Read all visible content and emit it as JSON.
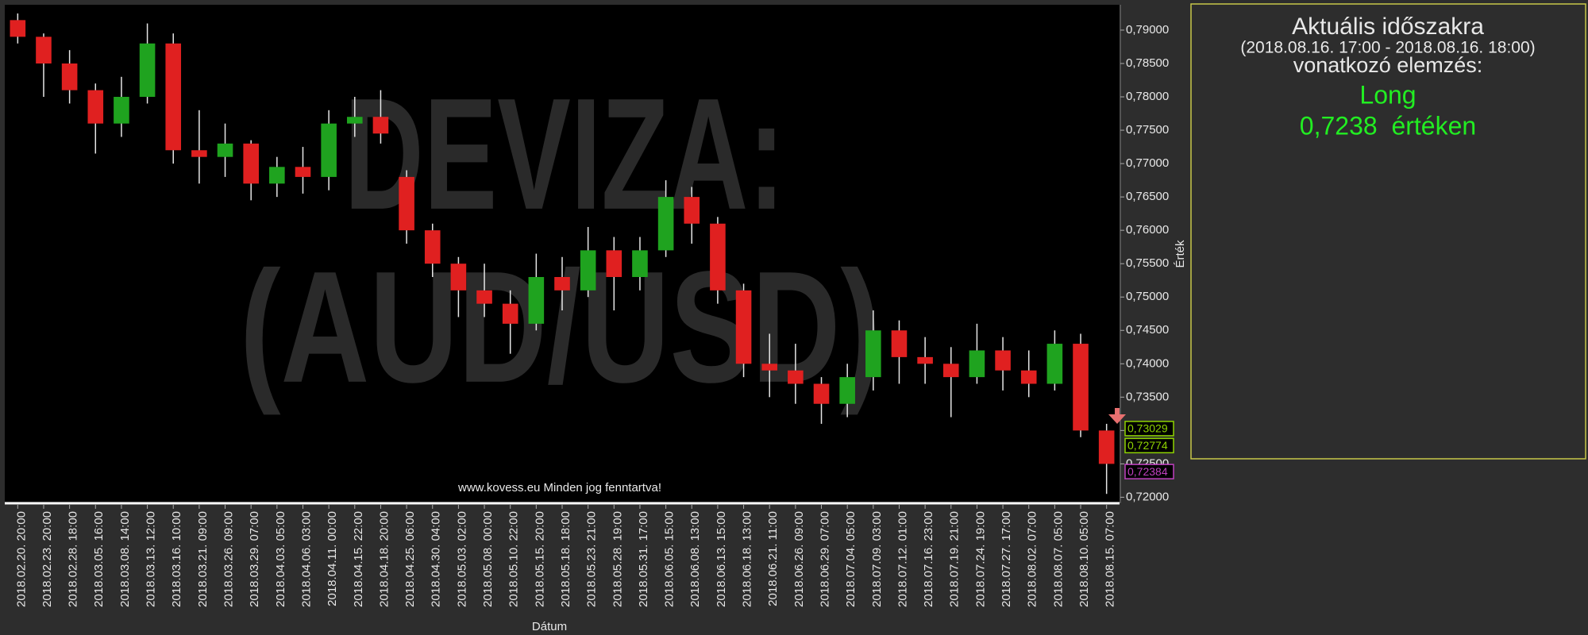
{
  "chart_data": {
    "type": "candlestick",
    "watermark": [
      "DEVIZA:",
      "(AUD/USD)"
    ],
    "footer": "www.kovess.eu Minden jog fenntartva!",
    "x_label": "Dátum",
    "y_label": "Érték",
    "categories": [
      "2018.02.20. 20:00",
      "2018.02.23. 20:00",
      "2018.02.28. 18:00",
      "2018.03.05. 16:00",
      "2018.03.08. 14:00",
      "2018.03.13. 12:00",
      "2018.03.16. 10:00",
      "2018.03.21. 09:00",
      "2018.03.26. 09:00",
      "2018.03.29. 07:00",
      "2018.04.03. 05:00",
      "2018.04.06. 03:00",
      "2018.04.11. 00:00",
      "2018.04.15. 22:00",
      "2018.04.18. 20:00",
      "2018.04.25. 06:00",
      "2018.04.30. 04:00",
      "2018.05.03. 02:00",
      "2018.05.08. 00:00",
      "2018.05.10. 22:00",
      "2018.05.15. 20:00",
      "2018.05.18. 18:00",
      "2018.05.23. 21:00",
      "2018.05.28. 19:00",
      "2018.05.31. 17:00",
      "2018.06.05. 15:00",
      "2018.06.08. 13:00",
      "2018.06.13. 15:00",
      "2018.06.18. 13:00",
      "2018.06.21. 11:00",
      "2018.06.26. 09:00",
      "2018.06.29. 07:00",
      "2018.07.04. 05:00",
      "2018.07.09. 03:00",
      "2018.07.12. 01:00",
      "2018.07.16. 23:00",
      "2018.07.19. 21:00",
      "2018.07.24. 19:00",
      "2018.07.27. 17:00",
      "2018.08.02. 07:00",
      "2018.08.07. 05:00",
      "2018.08.10. 05:00",
      "2018.08.15. 07:00"
    ],
    "open": [
      0.7915,
      0.789,
      0.785,
      0.781,
      0.776,
      0.78,
      0.788,
      0.772,
      0.771,
      0.773,
      0.767,
      0.7695,
      0.768,
      0.776,
      0.777,
      0.768,
      0.76,
      0.755,
      0.751,
      0.749,
      0.746,
      0.753,
      0.751,
      0.757,
      0.753,
      0.757,
      0.765,
      0.761,
      0.751,
      0.74,
      0.739,
      0.737,
      0.734,
      0.738,
      0.745,
      0.741,
      0.74,
      0.738,
      0.742,
      0.739,
      0.737,
      0.743,
      0.73
    ],
    "high": [
      0.7925,
      0.7895,
      0.787,
      0.782,
      0.783,
      0.791,
      0.7895,
      0.778,
      0.776,
      0.7735,
      0.771,
      0.7725,
      0.778,
      0.78,
      0.781,
      0.769,
      0.761,
      0.756,
      0.755,
      0.751,
      0.7565,
      0.756,
      0.7605,
      0.759,
      0.759,
      0.7675,
      0.7665,
      0.762,
      0.752,
      0.7445,
      0.743,
      0.738,
      0.74,
      0.748,
      0.7465,
      0.744,
      0.7425,
      0.746,
      0.744,
      0.742,
      0.745,
      0.7445,
      0.731
    ],
    "low": [
      0.788,
      0.78,
      0.779,
      0.7715,
      0.774,
      0.779,
      0.77,
      0.767,
      0.768,
      0.7645,
      0.765,
      0.7655,
      0.766,
      0.774,
      0.773,
      0.758,
      0.753,
      0.747,
      0.747,
      0.7415,
      0.745,
      0.748,
      0.75,
      0.748,
      0.751,
      0.756,
      0.758,
      0.749,
      0.738,
      0.735,
      0.734,
      0.731,
      0.732,
      0.736,
      0.737,
      0.737,
      0.732,
      0.737,
      0.736,
      0.735,
      0.736,
      0.729,
      0.7205
    ],
    "close": [
      0.789,
      0.785,
      0.781,
      0.776,
      0.78,
      0.788,
      0.772,
      0.771,
      0.773,
      0.767,
      0.7695,
      0.768,
      0.776,
      0.777,
      0.7745,
      0.76,
      0.755,
      0.751,
      0.749,
      0.746,
      0.753,
      0.751,
      0.757,
      0.753,
      0.757,
      0.765,
      0.761,
      0.751,
      0.74,
      0.739,
      0.737,
      0.734,
      0.738,
      0.745,
      0.741,
      0.74,
      0.738,
      0.742,
      0.739,
      0.737,
      0.743,
      0.73,
      0.725
    ],
    "up_color": "#1fa31f",
    "down_color": "#e02020",
    "ylim": [
      0.7191,
      0.7938
    ],
    "yticks": [
      {
        "value": 0.72,
        "label": "0,72000"
      },
      {
        "value": 0.725,
        "label": "0,72500"
      },
      {
        "value": 0.73,
        "label": "0,73000"
      },
      {
        "value": 0.735,
        "label": "0,73500"
      },
      {
        "value": 0.74,
        "label": "0,74000"
      },
      {
        "value": 0.745,
        "label": "0,74500"
      },
      {
        "value": 0.75,
        "label": "0,75000"
      },
      {
        "value": 0.755,
        "label": "0,75500"
      },
      {
        "value": 0.76,
        "label": "0,76000"
      },
      {
        "value": 0.765,
        "label": "0,76500"
      },
      {
        "value": 0.77,
        "label": "0,77000"
      },
      {
        "value": 0.775,
        "label": "0,77500"
      },
      {
        "value": 0.78,
        "label": "0,78000"
      },
      {
        "value": 0.785,
        "label": "0,78500"
      },
      {
        "value": 0.79,
        "label": "0,79000"
      }
    ],
    "price_markers": [
      {
        "value": 0.73029,
        "label": "0,73029",
        "color": "#8fd400"
      },
      {
        "value": 0.72774,
        "label": "0,72774",
        "color": "#8fd400"
      },
      {
        "value": 0.72384,
        "label": "0,72384",
        "color": "#c040c0"
      }
    ]
  },
  "analysis_panel": {
    "title": "Aktuális időszakra",
    "period": "(2018.08.16. 17:00 - 2018.08.16. 18:00)",
    "subtitle": "vonatkozó elemzés:",
    "signal": "Long",
    "price_text": "0,7238  értéken",
    "signal_color": "#22ee22"
  }
}
